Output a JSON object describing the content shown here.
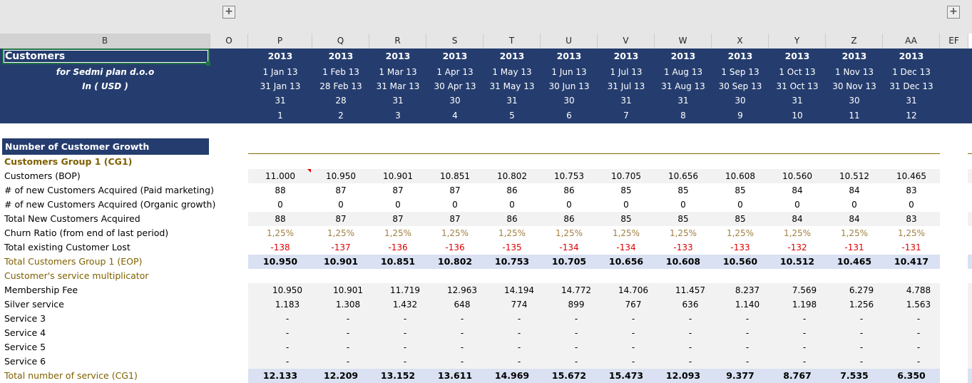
{
  "columns": [
    "B",
    "O",
    "P",
    "Q",
    "R",
    "S",
    "T",
    "U",
    "V",
    "W",
    "X",
    "Y",
    "Z",
    "AA",
    "EF"
  ],
  "header": {
    "title": "Customers",
    "company": "for Sedmi plan d.o.o",
    "currency": "In ( USD )",
    "years": [
      "2013",
      "2013",
      "2013",
      "2013",
      "2013",
      "2013",
      "2013",
      "2013",
      "2013",
      "2013",
      "2013",
      "2013"
    ],
    "start": [
      "1 Jan 13",
      "1 Feb 13",
      "1 Mar 13",
      "1 Apr 13",
      "1 May 13",
      "1 Jun 13",
      "1 Jul 13",
      "1 Aug 13",
      "1 Sep 13",
      "1 Oct 13",
      "1 Nov 13",
      "1 Dec 13"
    ],
    "end": [
      "31 Jan 13",
      "28 Feb 13",
      "31 Mar 13",
      "30 Apr 13",
      "31 May 13",
      "30 Jun 13",
      "31 Jul 13",
      "31 Aug 13",
      "30 Sep 13",
      "31 Oct 13",
      "30 Nov 13",
      "31 Dec 13"
    ],
    "days": [
      "31",
      "28",
      "31",
      "30",
      "31",
      "30",
      "31",
      "31",
      "30",
      "31",
      "30",
      "31"
    ],
    "period": [
      "1",
      "2",
      "3",
      "4",
      "5",
      "6",
      "7",
      "8",
      "9",
      "10",
      "11",
      "12"
    ]
  },
  "section": "Number of Customer Growth",
  "group": "Customers Group 1 (CG1)",
  "rows": [
    {
      "label": "Customers (BOP)",
      "style": "normal",
      "bg": "#f2f2f2",
      "values": [
        "11.000",
        "10.950",
        "10.901",
        "10.851",
        "10.802",
        "10.753",
        "10.705",
        "10.656",
        "10.608",
        "10.560",
        "10.512",
        "10.465"
      ]
    },
    {
      "label": "# of new Customers Acquired (Paid marketing)",
      "style": "normal",
      "values": [
        "88",
        "87",
        "87",
        "87",
        "86",
        "86",
        "85",
        "85",
        "85",
        "84",
        "84",
        "83"
      ]
    },
    {
      "label": "# of new Customers Acquired (Organic growth)",
      "style": "normal",
      "values": [
        "0",
        "0",
        "0",
        "0",
        "0",
        "0",
        "0",
        "0",
        "0",
        "0",
        "0",
        "0"
      ]
    },
    {
      "label": "Total New Customers Acquired",
      "style": "normal",
      "bg": "#f2f2f2",
      "values": [
        "88",
        "87",
        "87",
        "87",
        "86",
        "86",
        "85",
        "85",
        "85",
        "84",
        "84",
        "83"
      ]
    },
    {
      "label": "Churn Ratio (from end of last period)",
      "style": "pct",
      "values": [
        "1,25%",
        "1,25%",
        "1,25%",
        "1,25%",
        "1,25%",
        "1,25%",
        "1,25%",
        "1,25%",
        "1,25%",
        "1,25%",
        "1,25%",
        "1,25%"
      ]
    },
    {
      "label": "Total existing Customer Lost",
      "style": "neg",
      "values": [
        "-138",
        "-137",
        "-136",
        "-136",
        "-135",
        "-134",
        "-134",
        "-133",
        "-133",
        "-132",
        "-131",
        "-131"
      ]
    },
    {
      "label": "Total Customers Group 1 (EOP)",
      "style": "total",
      "bg": "#d9e1f2",
      "values": [
        "10.950",
        "10.901",
        "10.851",
        "10.802",
        "10.753",
        "10.705",
        "10.656",
        "10.608",
        "10.560",
        "10.512",
        "10.465",
        "10.417"
      ]
    },
    {
      "label": "Customer's service multiplicator",
      "style": "gold",
      "values": []
    },
    {
      "label": "Membership Fee",
      "style": "svc",
      "bg": "#f2f2f2",
      "values": [
        "10.950",
        "10.901",
        "11.719",
        "12.963",
        "14.194",
        "14.772",
        "14.706",
        "11.457",
        "8.237",
        "7.569",
        "6.279",
        "4.788"
      ]
    },
    {
      "label": "Silver service",
      "style": "svc",
      "bg": "#f2f2f2",
      "values": [
        "1.183",
        "1.308",
        "1.432",
        "648",
        "774",
        "899",
        "767",
        "636",
        "1.140",
        "1.198",
        "1.256",
        "1.563"
      ]
    },
    {
      "label": "Service 3",
      "style": "svc",
      "bg": "#f2f2f2",
      "values": [
        "-",
        "-",
        "-",
        "-",
        "-",
        "-",
        "-",
        "-",
        "-",
        "-",
        "-",
        "-"
      ]
    },
    {
      "label": "Service 4",
      "style": "svc",
      "bg": "#f2f2f2",
      "values": [
        "-",
        "-",
        "-",
        "-",
        "-",
        "-",
        "-",
        "-",
        "-",
        "-",
        "-",
        "-"
      ]
    },
    {
      "label": "Service 5",
      "style": "svc",
      "bg": "#f2f2f2",
      "values": [
        "-",
        "-",
        "-",
        "-",
        "-",
        "-",
        "-",
        "-",
        "-",
        "-",
        "-",
        "-"
      ]
    },
    {
      "label": "Service 6",
      "style": "svc",
      "bg": "#f2f2f2",
      "values": [
        "-",
        "-",
        "-",
        "-",
        "-",
        "-",
        "-",
        "-",
        "-",
        "-",
        "-",
        "-"
      ]
    },
    {
      "label": "Total number of service (CG1)",
      "style": "total",
      "bg": "#d9e1f2",
      "values": [
        "12.133",
        "12.209",
        "13.152",
        "13.611",
        "14.969",
        "15.672",
        "15.473",
        "12.093",
        "9.377",
        "8.767",
        "7.535",
        "6.350"
      ]
    }
  ],
  "colors": {
    "navy": "#253d6e",
    "gold": "#7f6000",
    "neg": "#e00000",
    "pct": "#a08040",
    "select": "#217346"
  }
}
